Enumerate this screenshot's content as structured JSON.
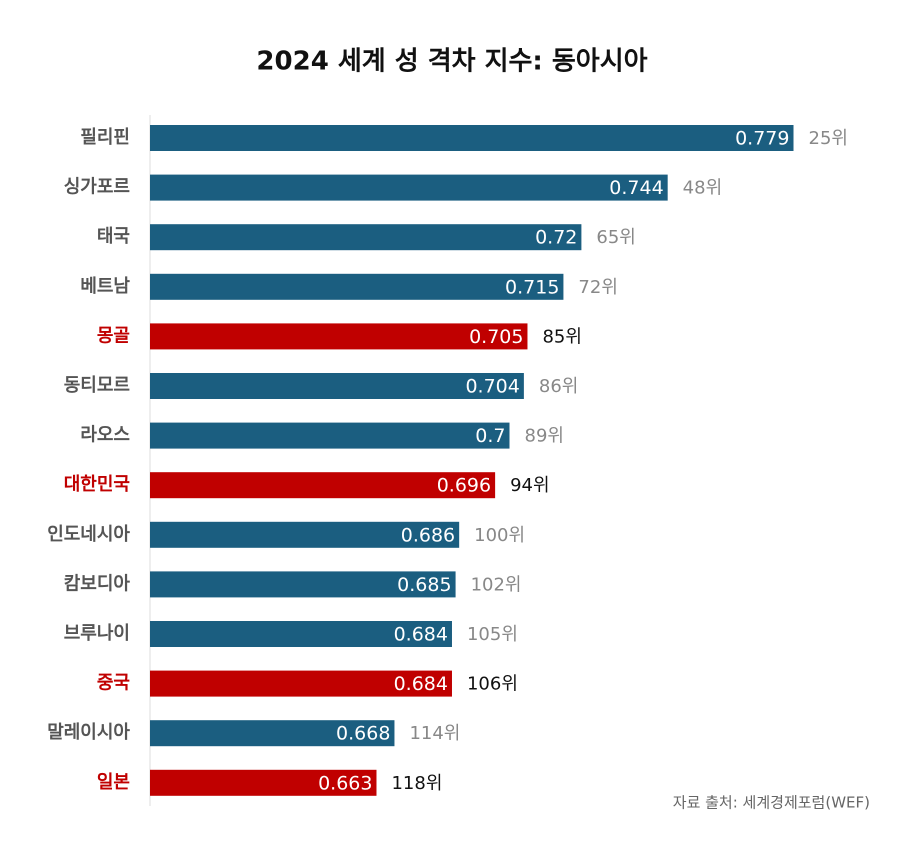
{
  "chart_data": {
    "type": "barh",
    "title": "2024 세계 성 격차 지수: 동아시아",
    "categories": [
      "필리핀",
      "싱가포르",
      "태국",
      "베트남",
      "몽골",
      "동티모르",
      "라오스",
      "대한민국",
      "인도네시아",
      "캄보디아",
      "브루나이",
      "중국",
      "말레이시아",
      "일본"
    ],
    "values": [
      0.779,
      0.744,
      0.72,
      0.715,
      0.705,
      0.704,
      0.7,
      0.696,
      0.686,
      0.685,
      0.684,
      0.684,
      0.668,
      0.663
    ],
    "ranks": [
      "25위",
      "48위",
      "65위",
      "72위",
      "85위",
      "86위",
      "89위",
      "94위",
      "100위",
      "102위",
      "105위",
      "106위",
      "114위",
      "118위"
    ],
    "highlighted": [
      false,
      false,
      false,
      false,
      true,
      false,
      false,
      true,
      false,
      false,
      false,
      true,
      false,
      true
    ],
    "color": "#1b5e80",
    "highlight_color": "#c00000",
    "xlim": [
      0.6,
      0.8
    ],
    "source": "자료 출처: 세계경제포럼(WEF)"
  }
}
